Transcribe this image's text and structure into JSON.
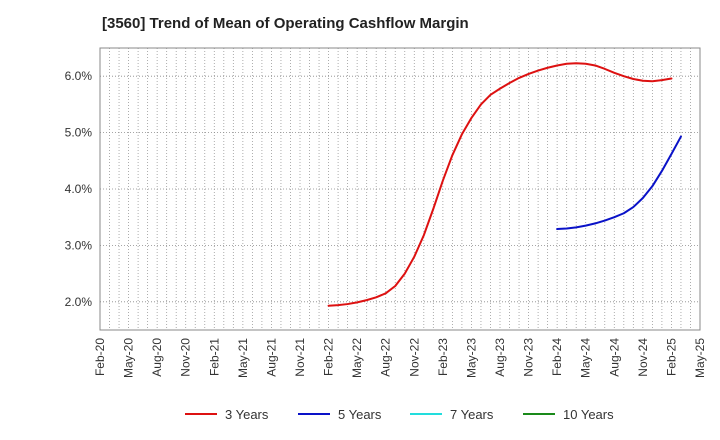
{
  "chart_data": {
    "type": "line",
    "title": "[3560]  Trend of Mean of Operating Cashflow Margin",
    "xlabel": "",
    "ylabel": "",
    "y_unit": "%",
    "x_tick_labels": [
      "Feb-20",
      "May-20",
      "Aug-20",
      "Nov-20",
      "Feb-21",
      "May-21",
      "Aug-21",
      "Nov-21",
      "Feb-22",
      "May-22",
      "Aug-22",
      "Nov-22",
      "Feb-23",
      "May-23",
      "Aug-23",
      "Nov-23",
      "Feb-24",
      "May-24",
      "Aug-24",
      "Nov-24",
      "Feb-25",
      "May-25"
    ],
    "y_ticks": [
      2.0,
      3.0,
      4.0,
      5.0,
      6.0
    ],
    "y_tick_labels": [
      "2.0%",
      "3.0%",
      "4.0%",
      "5.0%",
      "6.0%"
    ],
    "ylim": [
      1.5,
      6.5
    ],
    "x_range": [
      "Feb-20",
      "May-25"
    ],
    "grid": true,
    "legend_position": "bottom",
    "series": [
      {
        "name": "3 Years",
        "color": "#dd1111",
        "points": [
          [
            "Feb-22",
            1.93
          ],
          [
            "Mar-22",
            1.94
          ],
          [
            "Apr-22",
            1.96
          ],
          [
            "May-22",
            1.99
          ],
          [
            "Jun-22",
            2.03
          ],
          [
            "Jul-22",
            2.08
          ],
          [
            "Aug-22",
            2.15
          ],
          [
            "Sep-22",
            2.28
          ],
          [
            "Oct-22",
            2.5
          ],
          [
            "Nov-22",
            2.8
          ],
          [
            "Dec-22",
            3.18
          ],
          [
            "Jan-23",
            3.65
          ],
          [
            "Feb-23",
            4.15
          ],
          [
            "Mar-23",
            4.6
          ],
          [
            "Apr-23",
            4.97
          ],
          [
            "May-23",
            5.26
          ],
          [
            "Jun-23",
            5.5
          ],
          [
            "Jul-23",
            5.67
          ],
          [
            "Aug-23",
            5.78
          ],
          [
            "Sep-23",
            5.88
          ],
          [
            "Oct-23",
            5.97
          ],
          [
            "Nov-23",
            6.04
          ],
          [
            "Dec-23",
            6.1
          ],
          [
            "Jan-24",
            6.15
          ],
          [
            "Feb-24",
            6.19
          ],
          [
            "Mar-24",
            6.22
          ],
          [
            "Apr-24",
            6.23
          ],
          [
            "May-24",
            6.22
          ],
          [
            "Jun-24",
            6.19
          ],
          [
            "Jul-24",
            6.13
          ],
          [
            "Aug-24",
            6.06
          ],
          [
            "Sep-24",
            6.0
          ],
          [
            "Oct-24",
            5.95
          ],
          [
            "Nov-24",
            5.92
          ],
          [
            "Dec-24",
            5.91
          ],
          [
            "Jan-25",
            5.93
          ],
          [
            "Feb-25",
            5.96
          ]
        ]
      },
      {
        "name": "5 Years",
        "color": "#0a12c8",
        "points": [
          [
            "Feb-24",
            3.29
          ],
          [
            "Mar-24",
            3.3
          ],
          [
            "Apr-24",
            3.32
          ],
          [
            "May-24",
            3.35
          ],
          [
            "Jun-24",
            3.39
          ],
          [
            "Jul-24",
            3.44
          ],
          [
            "Aug-24",
            3.5
          ],
          [
            "Sep-24",
            3.57
          ],
          [
            "Oct-24",
            3.68
          ],
          [
            "Nov-24",
            3.84
          ],
          [
            "Dec-24",
            4.05
          ],
          [
            "Jan-25",
            4.32
          ],
          [
            "Feb-25",
            4.62
          ],
          [
            "Mar-25",
            4.93
          ]
        ]
      },
      {
        "name": "7 Years",
        "color": "#22dddd",
        "points": []
      },
      {
        "name": "10 Years",
        "color": "#1a8a1a",
        "points": []
      }
    ]
  }
}
